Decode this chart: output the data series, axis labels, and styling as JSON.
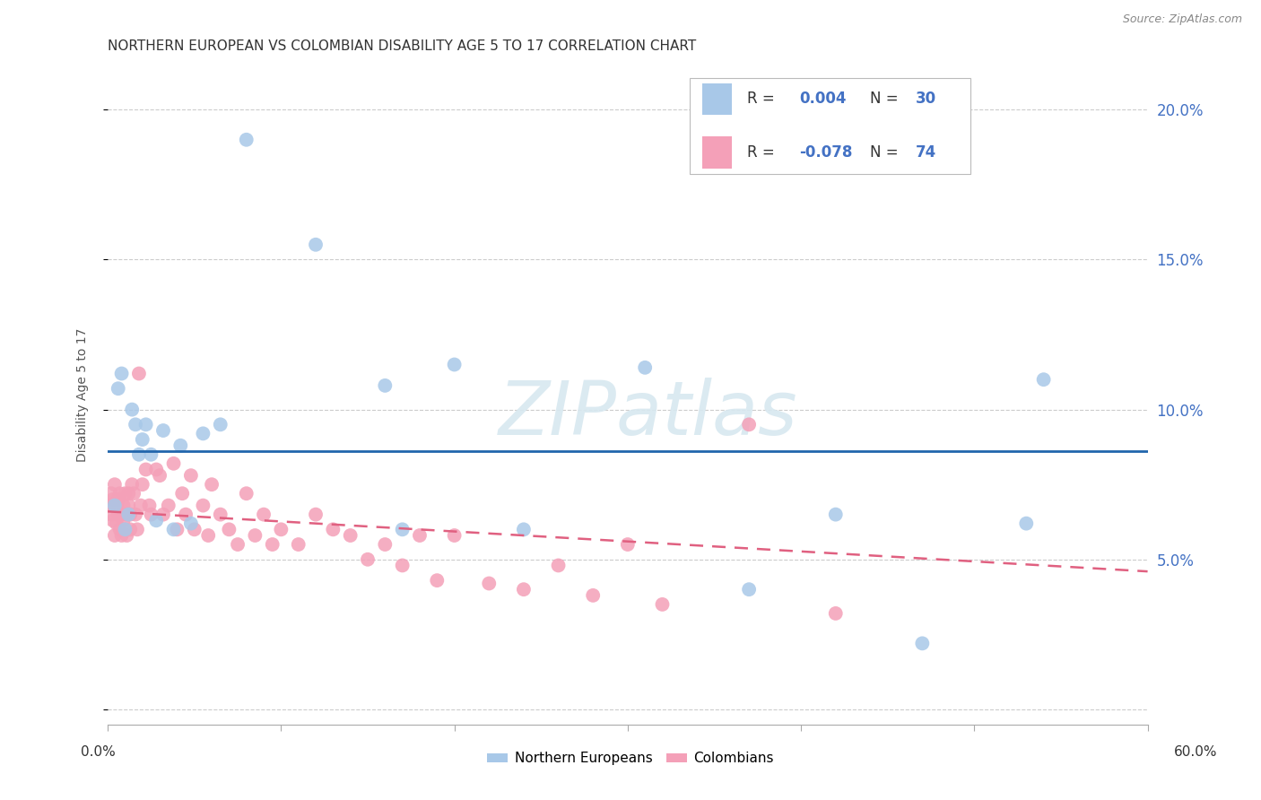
{
  "title": "NORTHERN EUROPEAN VS COLOMBIAN DISABILITY AGE 5 TO 17 CORRELATION CHART",
  "source": "Source: ZipAtlas.com",
  "ylabel": "Disability Age 5 to 17",
  "yticks": [
    0.0,
    0.05,
    0.1,
    0.15,
    0.2
  ],
  "ytick_labels": [
    "",
    "5.0%",
    "10.0%",
    "15.0%",
    "20.0%"
  ],
  "xlim": [
    0.0,
    0.6
  ],
  "ylim": [
    -0.005,
    0.215
  ],
  "ne_x": [
    0.004,
    0.006,
    0.008,
    0.01,
    0.012,
    0.014,
    0.016,
    0.018,
    0.02,
    0.022,
    0.025,
    0.028,
    0.032,
    0.038,
    0.042,
    0.048,
    0.055,
    0.065,
    0.08,
    0.12,
    0.16,
    0.17,
    0.2,
    0.24,
    0.31,
    0.37,
    0.42,
    0.47,
    0.53,
    0.54
  ],
  "ne_y": [
    0.068,
    0.107,
    0.112,
    0.06,
    0.065,
    0.1,
    0.095,
    0.085,
    0.09,
    0.095,
    0.085,
    0.063,
    0.093,
    0.06,
    0.088,
    0.062,
    0.092,
    0.095,
    0.19,
    0.155,
    0.108,
    0.06,
    0.115,
    0.06,
    0.114,
    0.04,
    0.065,
    0.022,
    0.062,
    0.11
  ],
  "co_x": [
    0.001,
    0.002,
    0.002,
    0.003,
    0.003,
    0.004,
    0.004,
    0.005,
    0.005,
    0.006,
    0.006,
    0.007,
    0.007,
    0.008,
    0.008,
    0.009,
    0.009,
    0.01,
    0.01,
    0.011,
    0.011,
    0.012,
    0.012,
    0.013,
    0.013,
    0.014,
    0.015,
    0.016,
    0.017,
    0.018,
    0.019,
    0.02,
    0.022,
    0.024,
    0.025,
    0.028,
    0.03,
    0.032,
    0.035,
    0.038,
    0.04,
    0.043,
    0.045,
    0.048,
    0.05,
    0.055,
    0.058,
    0.06,
    0.065,
    0.07,
    0.075,
    0.08,
    0.085,
    0.09,
    0.095,
    0.1,
    0.11,
    0.12,
    0.13,
    0.14,
    0.15,
    0.16,
    0.17,
    0.18,
    0.19,
    0.2,
    0.22,
    0.24,
    0.26,
    0.28,
    0.3,
    0.32,
    0.37,
    0.42
  ],
  "co_y": [
    0.068,
    0.065,
    0.072,
    0.063,
    0.07,
    0.058,
    0.075,
    0.062,
    0.068,
    0.065,
    0.07,
    0.06,
    0.072,
    0.065,
    0.058,
    0.068,
    0.063,
    0.072,
    0.06,
    0.065,
    0.058,
    0.068,
    0.072,
    0.06,
    0.065,
    0.075,
    0.072,
    0.065,
    0.06,
    0.112,
    0.068,
    0.075,
    0.08,
    0.068,
    0.065,
    0.08,
    0.078,
    0.065,
    0.068,
    0.082,
    0.06,
    0.072,
    0.065,
    0.078,
    0.06,
    0.068,
    0.058,
    0.075,
    0.065,
    0.06,
    0.055,
    0.072,
    0.058,
    0.065,
    0.055,
    0.06,
    0.055,
    0.065,
    0.06,
    0.058,
    0.05,
    0.055,
    0.048,
    0.058,
    0.043,
    0.058,
    0.042,
    0.04,
    0.048,
    0.038,
    0.055,
    0.035,
    0.095,
    0.032
  ],
  "ne_color": "#a8c8e8",
  "co_color": "#f4a0b8",
  "ne_trend_color": "#2166ac",
  "co_trend_color": "#e06080",
  "ne_trend_y_start": 0.086,
  "ne_trend_y_end": 0.086,
  "co_trend_y_start": 0.066,
  "co_trend_y_end": 0.046,
  "watermark_text": "ZIPatlas",
  "bg_color": "#ffffff",
  "grid_color": "#cccccc",
  "title_fontsize": 11,
  "axis_label_fontsize": 10,
  "legend_r1": "R =  0.004",
  "legend_n1": "N = 30",
  "legend_r2": "R = -0.078",
  "legend_n2": "N = 74",
  "legend_label_color": "#333333",
  "legend_value_color": "#4472c4"
}
